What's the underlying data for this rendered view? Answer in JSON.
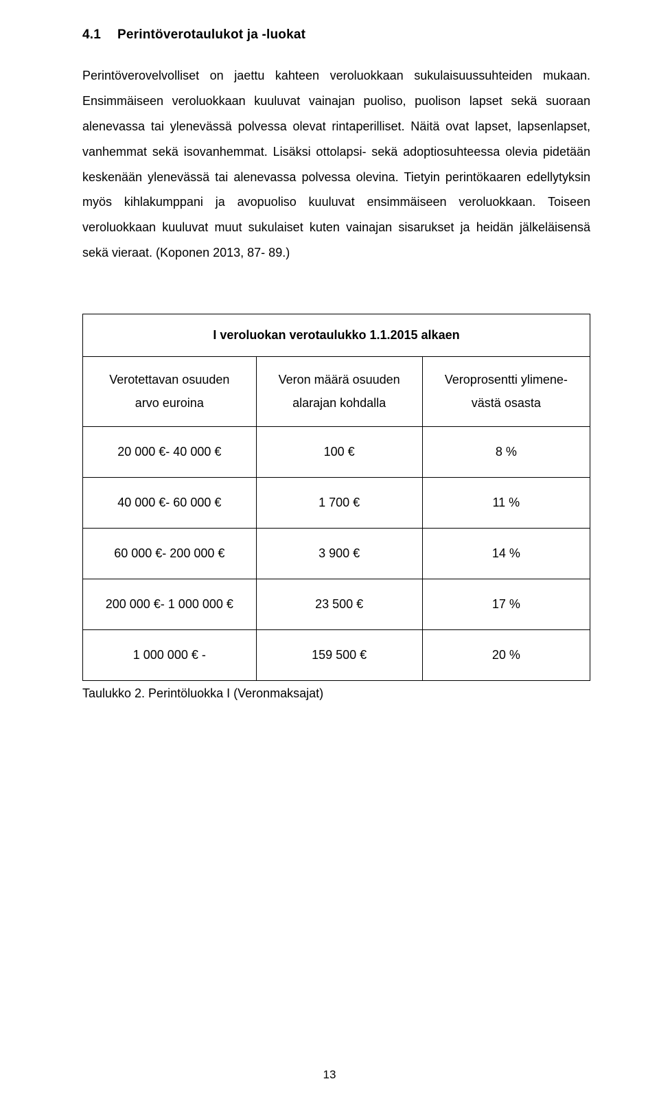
{
  "heading": {
    "number": "4.1",
    "title": "Perintöverotaulukot ja -luokat"
  },
  "paragraph": "Perintöverovelvolliset on jaettu kahteen veroluokkaan sukulaisuussuhteiden mukaan. Ensimmäiseen veroluokkaan kuuluvat vainajan puoliso, puolison lapset sekä suoraan alenevassa tai ylenevässä polvessa olevat rintaperilliset. Näitä ovat lapset, lapsenlapset, vanhemmat sekä isovanhemmat. Lisäksi ottolapsi- sekä adoptiosuhteessa olevia pidetään keskenään ylenevässä tai alenevassa polvessa olevina. Tietyin perintökaaren edellytyksin myös kihlakumppani ja avopuoliso kuuluvat ensimmäiseen veroluokkaan. Toiseen veroluokkaan kuuluvat muut sukulaiset kuten vainajan sisarukset ja heidän jälkeläisensä sekä vieraat. (Koponen 2013, 87- 89.)",
  "table": {
    "title": "I veroluokan verotaulukko 1.1.2015 alkaen",
    "columns": [
      {
        "line1": "Verotettavan osuuden",
        "line2": "arvo euroina"
      },
      {
        "line1": "Veron määrä osuuden",
        "line2": "alarajan kohdalla"
      },
      {
        "line1": "Veroprosentti ylimene-",
        "line2": "västä osasta"
      }
    ],
    "rows": [
      {
        "range": "20 000 €- 40 000 €",
        "amount": "100 €",
        "percent": "8 %"
      },
      {
        "range": "40 000 €- 60 000 €",
        "amount": "1 700 €",
        "percent": "11 %"
      },
      {
        "range": "60 000 €- 200 000 €",
        "amount": "3 900 €",
        "percent": "14 %"
      },
      {
        "range": "200 000 €- 1 000 000 €",
        "amount": "23 500 €",
        "percent": "17 %"
      },
      {
        "range": "1 000 000 €  -",
        "amount": "159 500 €",
        "percent": "20 %"
      }
    ],
    "caption": "Taulukko 2. Perintöluokka I (Veronmaksajat)",
    "border_color": "#000000",
    "background_color": "#ffffff",
    "font_size": 18,
    "col_widths": [
      "38%",
      "31%",
      "31%"
    ]
  },
  "page_number": "13",
  "style": {
    "font_family": "Arial",
    "text_color": "#000000",
    "page_bg": "#ffffff",
    "heading_fontsize": 19,
    "body_fontsize": 18,
    "line_height": 2.05
  }
}
